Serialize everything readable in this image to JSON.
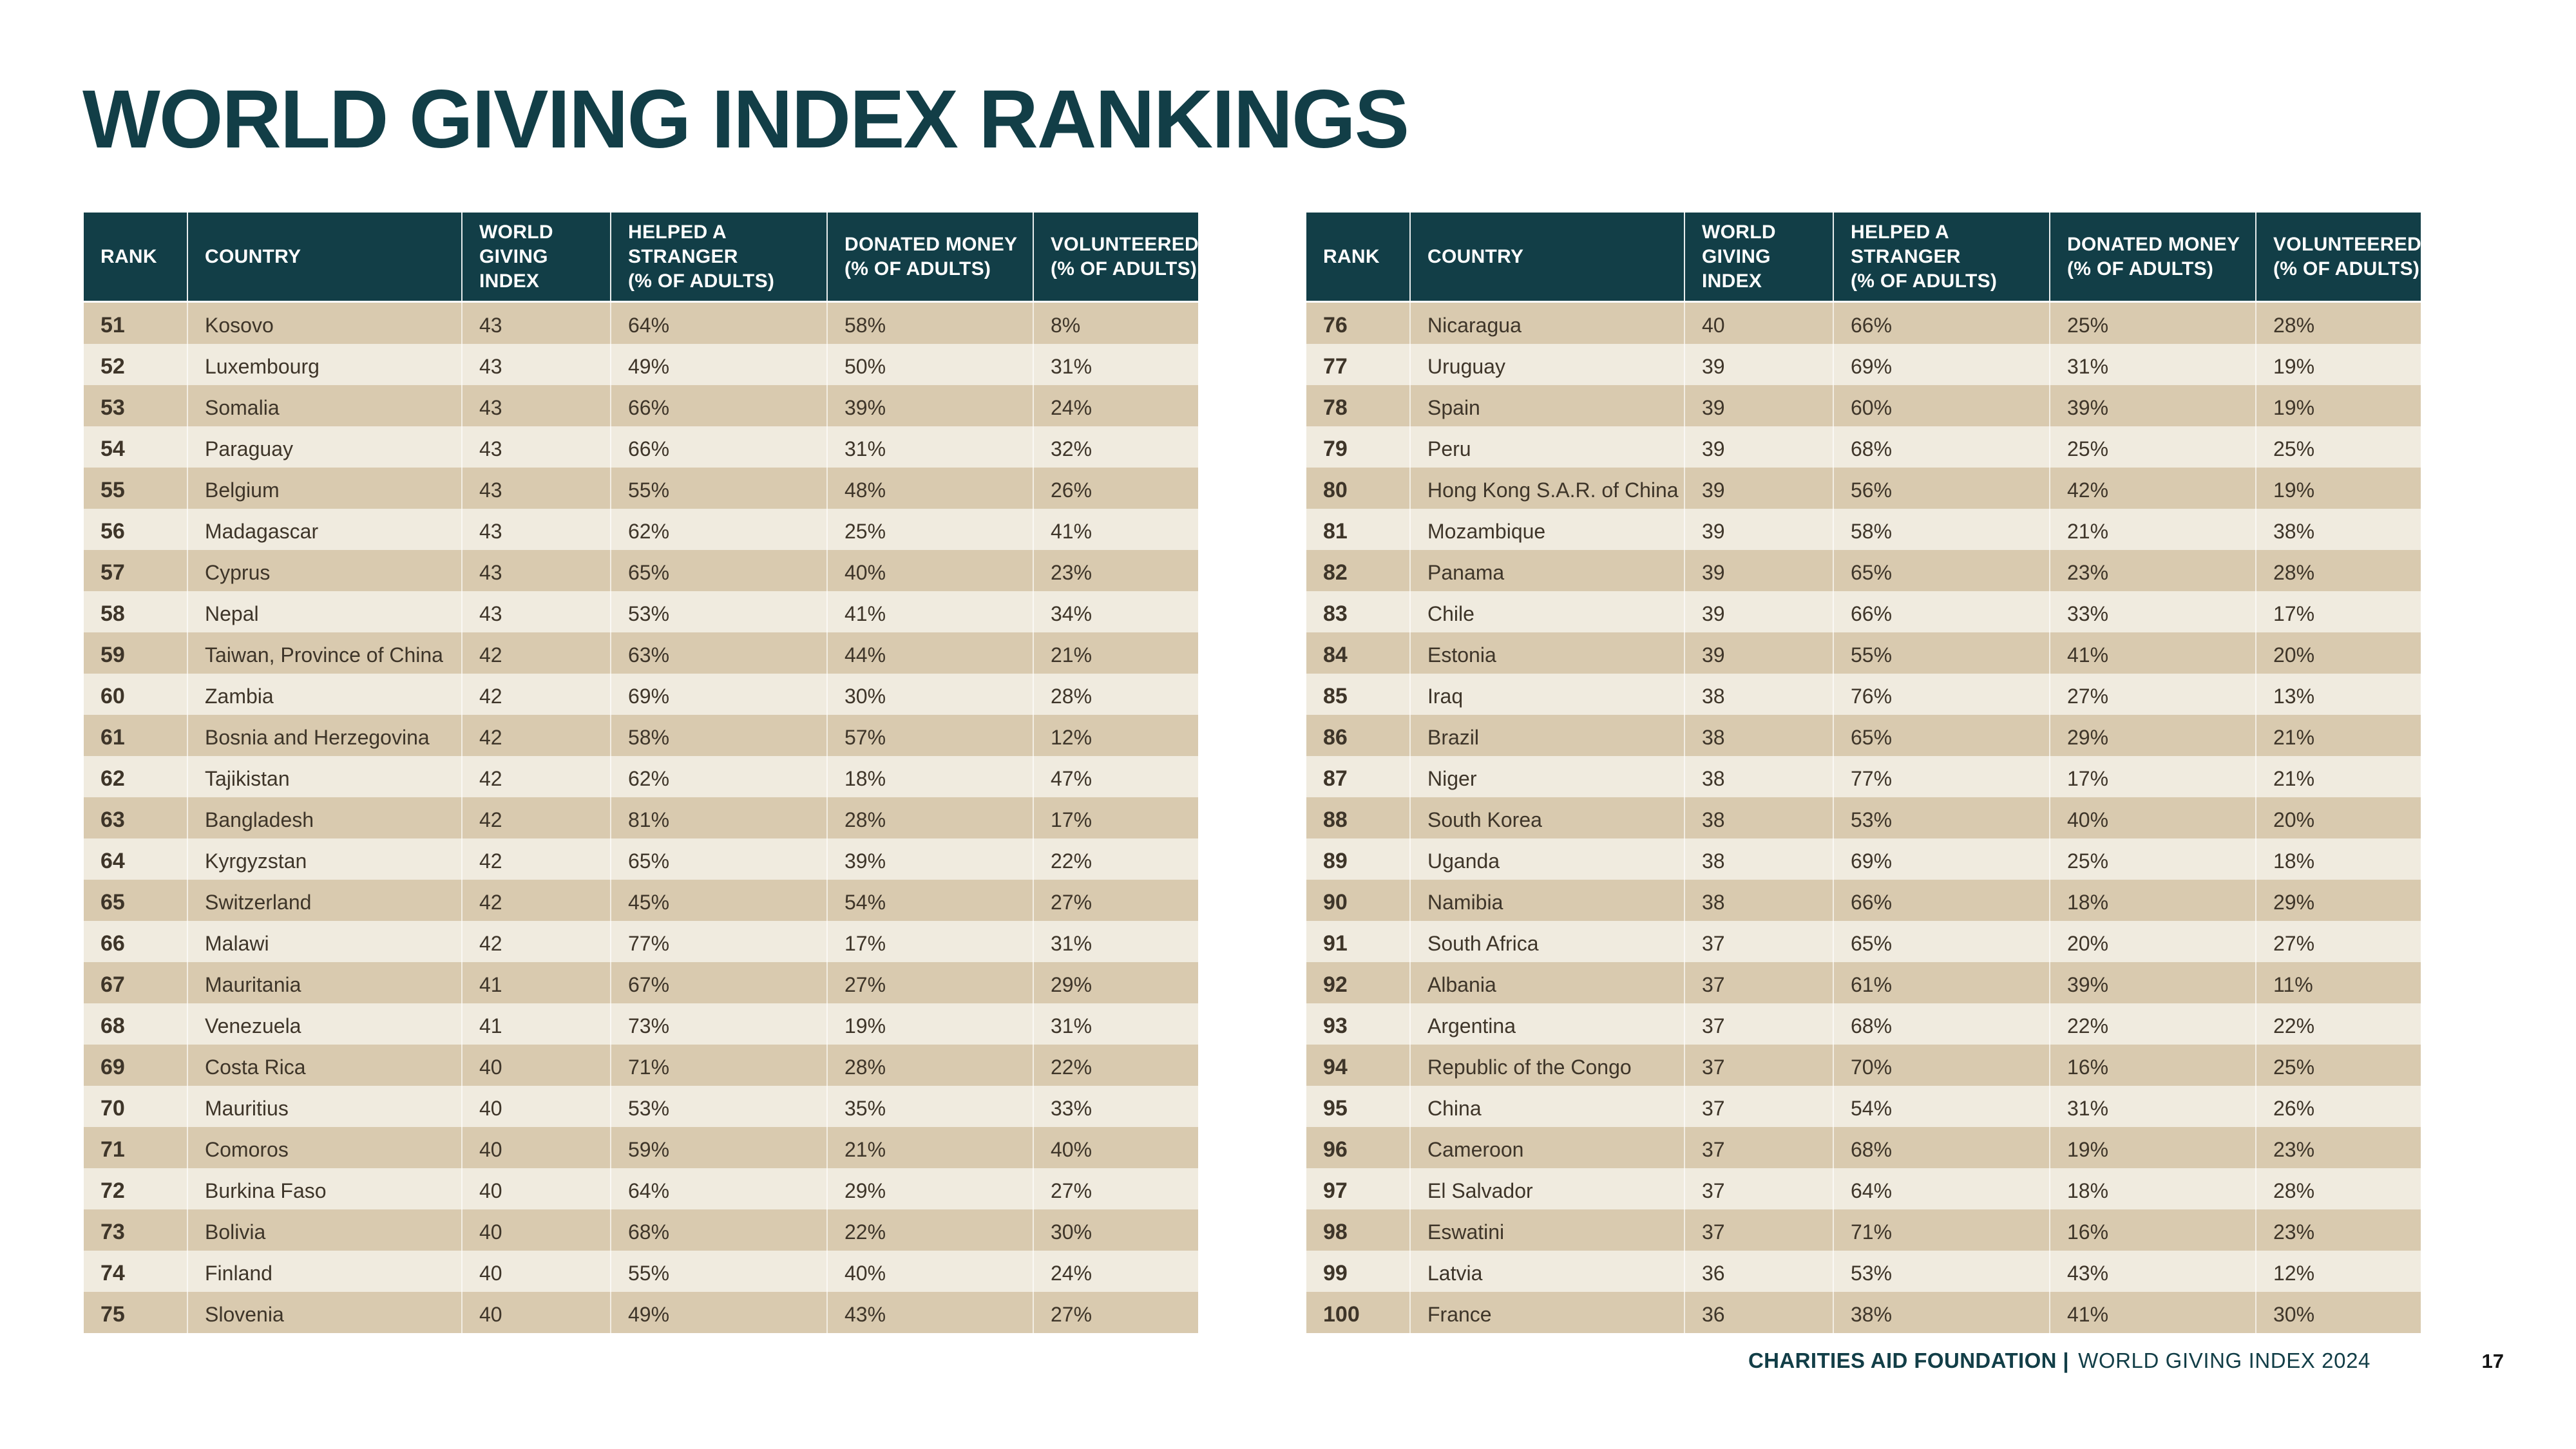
{
  "title": "WORLD GIVING INDEX RANKINGS",
  "colors": {
    "header_teal": "#123E47",
    "title_teal": "#123E47",
    "row_dark_tan": "#D9CAAF",
    "row_light_cream": "#F0EBDF",
    "body_text_brown": "#3E3529",
    "page_background": "#FFFFFF"
  },
  "columns": [
    "RANK",
    "COUNTRY",
    "WORLD\nGIVING\nINDEX",
    "HELPED A\nSTRANGER\n(% OF ADULTS)",
    "DONATED MONEY\n(% OF ADULTS)",
    "VOLUNTEERED\n(% OF ADULTS)"
  ],
  "tables": [
    {
      "name": "ranks-51-75",
      "rows": [
        {
          "rank": "51",
          "country": "Kosovo",
          "index": "43",
          "helped": "64%",
          "donated": "58%",
          "volunteered": "8%"
        },
        {
          "rank": "52",
          "country": "Luxembourg",
          "index": "43",
          "helped": "49%",
          "donated": "50%",
          "volunteered": "31%"
        },
        {
          "rank": "53",
          "country": "Somalia",
          "index": "43",
          "helped": "66%",
          "donated": "39%",
          "volunteered": "24%"
        },
        {
          "rank": "54",
          "country": "Paraguay",
          "index": "43",
          "helped": "66%",
          "donated": "31%",
          "volunteered": "32%"
        },
        {
          "rank": "55",
          "country": "Belgium",
          "index": "43",
          "helped": "55%",
          "donated": "48%",
          "volunteered": "26%"
        },
        {
          "rank": "56",
          "country": "Madagascar",
          "index": "43",
          "helped": "62%",
          "donated": "25%",
          "volunteered": "41%"
        },
        {
          "rank": "57",
          "country": "Cyprus",
          "index": "43",
          "helped": "65%",
          "donated": "40%",
          "volunteered": "23%"
        },
        {
          "rank": "58",
          "country": "Nepal",
          "index": "43",
          "helped": "53%",
          "donated": "41%",
          "volunteered": "34%"
        },
        {
          "rank": "59",
          "country": "Taiwan, Province of China",
          "index": "42",
          "helped": "63%",
          "donated": "44%",
          "volunteered": "21%"
        },
        {
          "rank": "60",
          "country": "Zambia",
          "index": "42",
          "helped": "69%",
          "donated": "30%",
          "volunteered": "28%"
        },
        {
          "rank": "61",
          "country": "Bosnia and Herzegovina",
          "index": "42",
          "helped": "58%",
          "donated": "57%",
          "volunteered": "12%"
        },
        {
          "rank": "62",
          "country": "Tajikistan",
          "index": "42",
          "helped": "62%",
          "donated": "18%",
          "volunteered": "47%"
        },
        {
          "rank": "63",
          "country": "Bangladesh",
          "index": "42",
          "helped": "81%",
          "donated": "28%",
          "volunteered": "17%"
        },
        {
          "rank": "64",
          "country": "Kyrgyzstan",
          "index": "42",
          "helped": "65%",
          "donated": "39%",
          "volunteered": "22%"
        },
        {
          "rank": "65",
          "country": "Switzerland",
          "index": "42",
          "helped": "45%",
          "donated": "54%",
          "volunteered": "27%"
        },
        {
          "rank": "66",
          "country": "Malawi",
          "index": "42",
          "helped": "77%",
          "donated": "17%",
          "volunteered": "31%"
        },
        {
          "rank": "67",
          "country": "Mauritania",
          "index": "41",
          "helped": "67%",
          "donated": "27%",
          "volunteered": "29%"
        },
        {
          "rank": "68",
          "country": "Venezuela",
          "index": "41",
          "helped": "73%",
          "donated": "19%",
          "volunteered": "31%"
        },
        {
          "rank": "69",
          "country": "Costa Rica",
          "index": "40",
          "helped": "71%",
          "donated": "28%",
          "volunteered": "22%"
        },
        {
          "rank": "70",
          "country": "Mauritius",
          "index": "40",
          "helped": "53%",
          "donated": "35%",
          "volunteered": "33%"
        },
        {
          "rank": "71",
          "country": "Comoros",
          "index": "40",
          "helped": "59%",
          "donated": "21%",
          "volunteered": "40%"
        },
        {
          "rank": "72",
          "country": "Burkina Faso",
          "index": "40",
          "helped": "64%",
          "donated": "29%",
          "volunteered": "27%"
        },
        {
          "rank": "73",
          "country": "Bolivia",
          "index": "40",
          "helped": "68%",
          "donated": "22%",
          "volunteered": "30%"
        },
        {
          "rank": "74",
          "country": "Finland",
          "index": "40",
          "helped": "55%",
          "donated": "40%",
          "volunteered": "24%"
        },
        {
          "rank": "75",
          "country": "Slovenia",
          "index": "40",
          "helped": "49%",
          "donated": "43%",
          "volunteered": "27%"
        }
      ]
    },
    {
      "name": "ranks-76-100",
      "rows": [
        {
          "rank": "76",
          "country": "Nicaragua",
          "index": "40",
          "helped": "66%",
          "donated": "25%",
          "volunteered": "28%"
        },
        {
          "rank": "77",
          "country": "Uruguay",
          "index": "39",
          "helped": "69%",
          "donated": "31%",
          "volunteered": "19%"
        },
        {
          "rank": "78",
          "country": "Spain",
          "index": "39",
          "helped": "60%",
          "donated": "39%",
          "volunteered": "19%"
        },
        {
          "rank": "79",
          "country": "Peru",
          "index": "39",
          "helped": "68%",
          "donated": "25%",
          "volunteered": "25%"
        },
        {
          "rank": "80",
          "country": "Hong Kong S.A.R. of China",
          "index": "39",
          "helped": "56%",
          "donated": "42%",
          "volunteered": "19%"
        },
        {
          "rank": "81",
          "country": "Mozambique",
          "index": "39",
          "helped": "58%",
          "donated": "21%",
          "volunteered": "38%"
        },
        {
          "rank": "82",
          "country": "Panama",
          "index": "39",
          "helped": "65%",
          "donated": "23%",
          "volunteered": "28%"
        },
        {
          "rank": "83",
          "country": "Chile",
          "index": "39",
          "helped": "66%",
          "donated": "33%",
          "volunteered": "17%"
        },
        {
          "rank": "84",
          "country": "Estonia",
          "index": "39",
          "helped": "55%",
          "donated": "41%",
          "volunteered": "20%"
        },
        {
          "rank": "85",
          "country": "Iraq",
          "index": "38",
          "helped": "76%",
          "donated": "27%",
          "volunteered": "13%"
        },
        {
          "rank": "86",
          "country": "Brazil",
          "index": "38",
          "helped": "65%",
          "donated": "29%",
          "volunteered": "21%"
        },
        {
          "rank": "87",
          "country": "Niger",
          "index": "38",
          "helped": "77%",
          "donated": "17%",
          "volunteered": "21%"
        },
        {
          "rank": "88",
          "country": "South Korea",
          "index": "38",
          "helped": "53%",
          "donated": "40%",
          "volunteered": "20%"
        },
        {
          "rank": "89",
          "country": "Uganda",
          "index": "38",
          "helped": "69%",
          "donated": "25%",
          "volunteered": "18%"
        },
        {
          "rank": "90",
          "country": "Namibia",
          "index": "38",
          "helped": "66%",
          "donated": "18%",
          "volunteered": "29%"
        },
        {
          "rank": "91",
          "country": "South Africa",
          "index": "37",
          "helped": "65%",
          "donated": "20%",
          "volunteered": "27%"
        },
        {
          "rank": "92",
          "country": "Albania",
          "index": "37",
          "helped": "61%",
          "donated": "39%",
          "volunteered": "11%"
        },
        {
          "rank": "93",
          "country": "Argentina",
          "index": "37",
          "helped": "68%",
          "donated": "22%",
          "volunteered": "22%"
        },
        {
          "rank": "94",
          "country": "Republic of the Congo",
          "index": "37",
          "helped": "70%",
          "donated": "16%",
          "volunteered": "25%"
        },
        {
          "rank": "95",
          "country": "China",
          "index": "37",
          "helped": "54%",
          "donated": "31%",
          "volunteered": "26%"
        },
        {
          "rank": "96",
          "country": "Cameroon",
          "index": "37",
          "helped": "68%",
          "donated": "19%",
          "volunteered": "23%"
        },
        {
          "rank": "97",
          "country": "El Salvador",
          "index": "37",
          "helped": "64%",
          "donated": "18%",
          "volunteered": "28%"
        },
        {
          "rank": "98",
          "country": "Eswatini",
          "index": "37",
          "helped": "71%",
          "donated": "16%",
          "volunteered": "23%"
        },
        {
          "rank": "99",
          "country": "Latvia",
          "index": "36",
          "helped": "53%",
          "donated": "43%",
          "volunteered": "12%"
        },
        {
          "rank": "100",
          "country": "France",
          "index": "36",
          "helped": "38%",
          "donated": "41%",
          "volunteered": "30%"
        }
      ]
    }
  ],
  "footer": {
    "brand_bold": "CHARITIES AID FOUNDATION |",
    "report_title": "WORLD GIVING INDEX 2024",
    "page_number": "17"
  }
}
